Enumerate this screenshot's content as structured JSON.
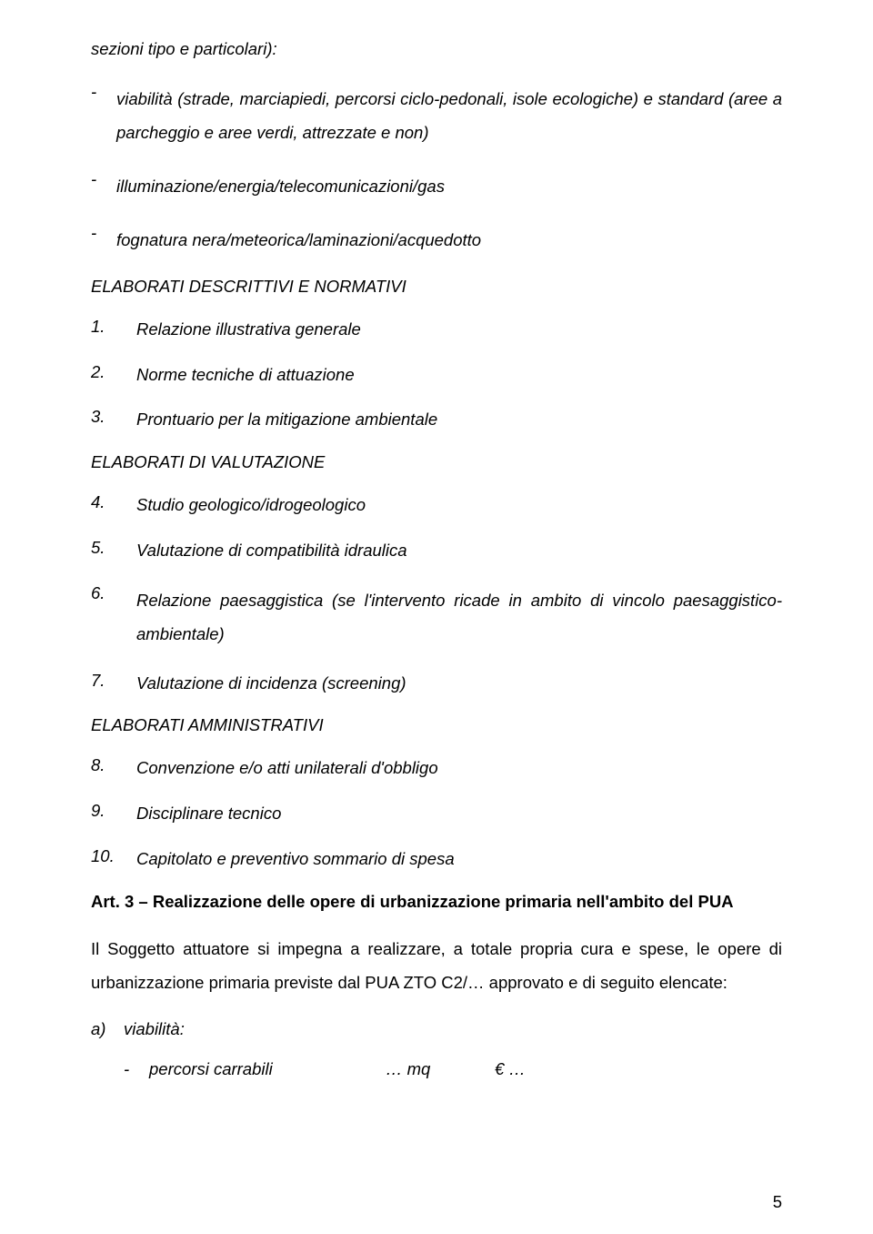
{
  "intro": "sezioni tipo e particolari):",
  "dash_items": [
    "viabilità (strade, marciapiedi, percorsi ciclo-pedonali, isole ecologiche) e standard (aree a parcheggio e aree verdi, attrezzate e non)",
    "illuminazione/energia/telecomunicazioni/gas",
    "fognatura nera/meteorica/laminazioni/acquedotto"
  ],
  "section1": "ELABORATI DESCRITTIVI E NORMATIVI",
  "list1": [
    {
      "n": "1.",
      "t": "Relazione illustrativa generale"
    },
    {
      "n": "2.",
      "t": "Norme tecniche di attuazione"
    },
    {
      "n": "3.",
      "t": "Prontuario per la mitigazione ambientale"
    }
  ],
  "section2": "ELABORATI DI VALUTAZIONE",
  "list2": [
    {
      "n": "4.",
      "t": "Studio geologico/idrogeologico"
    },
    {
      "n": "5.",
      "t": "Valutazione di compatibilità idraulica"
    },
    {
      "n": "6.",
      "t": "Relazione paesaggistica (se l'intervento ricade in ambito di vincolo paesaggistico-ambientale)"
    },
    {
      "n": "7.",
      "t": "Valutazione di incidenza (screening)"
    }
  ],
  "section3": "ELABORATI AMMINISTRATIVI",
  "list3": [
    {
      "n": "8.",
      "t": "Convenzione e/o atti unilaterali d'obbligo"
    },
    {
      "n": "9.",
      "t": "Disciplinare tecnico"
    },
    {
      "n": "10.",
      "t": "Capitolato e preventivo sommario di spesa"
    }
  ],
  "art3_heading": "Art. 3 – Realizzazione delle opere di urbanizzazione primaria nell'ambito del PUA",
  "art3_para": "Il Soggetto attuatore si impegna a realizzare, a totale propria cura e spese, le opere di urbanizzazione primaria previste dal PUA ZTO C2/… approvato e di seguito elencate:",
  "letter_a": {
    "letter": "a)",
    "text": "viabilità:"
  },
  "sub_row": {
    "label": "percorsi carrabili",
    "mq": "… mq",
    "euro": "€ …"
  },
  "page_no": "5",
  "colors": {
    "text": "#000000",
    "bg": "#ffffff"
  },
  "fontsize_pt": 14
}
